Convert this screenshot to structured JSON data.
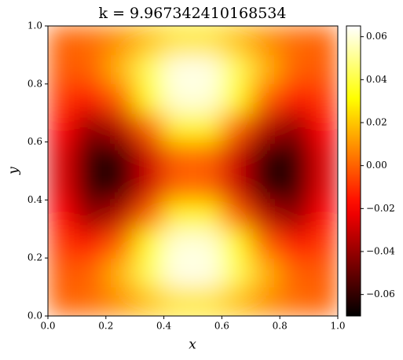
{
  "chart_data": {
    "type": "heatmap",
    "title": "k = 9.967342410168534",
    "xlabel": "x",
    "ylabel": "y",
    "x": [
      0.05,
      0.15,
      0.25,
      0.35,
      0.45,
      0.55,
      0.65,
      0.75,
      0.85,
      0.95
    ],
    "y": [
      0.05,
      0.15,
      0.25,
      0.35,
      0.45,
      0.55,
      0.65,
      0.75,
      0.85,
      0.95
    ],
    "z": [
      [
        0,
        0.002,
        0.009,
        0.019,
        0.026,
        0.026,
        0.019,
        0.009,
        0.002,
        0
      ],
      [
        -0.002,
        0,
        0.017,
        0.043,
        0.062,
        0.062,
        0.043,
        0.017,
        0,
        -0.002
      ],
      [
        -0.009,
        -0.017,
        0,
        0.033,
        0.06,
        0.06,
        0.033,
        0,
        -0.017,
        -0.009
      ],
      [
        -0.019,
        -0.043,
        -0.033,
        0,
        0.029,
        0.029,
        0,
        -0.033,
        -0.043,
        -0.019
      ],
      [
        -0.026,
        -0.062,
        -0.06,
        -0.029,
        0,
        0,
        -0.029,
        -0.06,
        -0.062,
        -0.026
      ],
      [
        -0.026,
        -0.062,
        -0.06,
        -0.029,
        0,
        0,
        -0.029,
        -0.06,
        -0.062,
        -0.026
      ],
      [
        -0.019,
        -0.043,
        -0.033,
        0,
        0.029,
        0.029,
        0,
        -0.033,
        -0.043,
        -0.019
      ],
      [
        -0.009,
        -0.017,
        0,
        0.033,
        0.06,
        0.06,
        0.033,
        0,
        -0.017,
        -0.009
      ],
      [
        -0.002,
        0,
        0.017,
        0.043,
        0.062,
        0.062,
        0.043,
        0.017,
        0,
        -0.002
      ],
      [
        0,
        0.002,
        0.009,
        0.019,
        0.026,
        0.026,
        0.019,
        0.009,
        0.002,
        0
      ]
    ],
    "colormap": "hot",
    "xlim": [
      0,
      1
    ],
    "ylim": [
      0,
      1
    ],
    "xticks": [
      {
        "value": 0,
        "label": "0.0"
      },
      {
        "value": 0.2,
        "label": "0.2"
      },
      {
        "value": 0.4,
        "label": "0.4"
      },
      {
        "value": 0.6,
        "label": "0.6"
      },
      {
        "value": 0.8,
        "label": "0.8"
      },
      {
        "value": 1,
        "label": "1.0"
      }
    ],
    "yticks": [
      {
        "value": 0,
        "label": "0.0"
      },
      {
        "value": 0.2,
        "label": "0.2"
      },
      {
        "value": 0.4,
        "label": "0.4"
      },
      {
        "value": 0.6,
        "label": "0.6"
      },
      {
        "value": 0.8,
        "label": "0.8"
      },
      {
        "value": 1,
        "label": "1.0"
      }
    ],
    "clim": [
      -0.07,
      0.065
    ],
    "cticks": [
      {
        "value": -0.06,
        "label": "−0.06"
      },
      {
        "value": -0.04,
        "label": "−0.04"
      },
      {
        "value": -0.02,
        "label": "−0.02"
      },
      {
        "value": 0,
        "label": "0.00"
      },
      {
        "value": 0.02,
        "label": "0.02"
      },
      {
        "value": 0.04,
        "label": "0.04"
      },
      {
        "value": 0.06,
        "label": "0.06"
      }
    ]
  }
}
